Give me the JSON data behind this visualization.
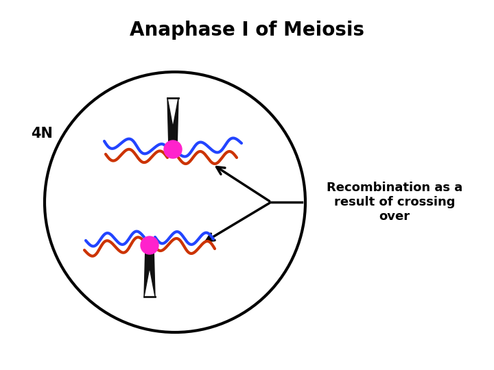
{
  "title": "Anaphase I of Meiosis",
  "label_4n": "4N",
  "annotation": "Recombination as a\nresult of crossing\nover",
  "bg_color": "#ffffff",
  "title_fontsize": 20,
  "label_fontsize": 15,
  "annotation_fontsize": 13,
  "spindle_color": "#111111",
  "centromere_color": "#ff22cc",
  "blue_color": "#2244ff",
  "orange_color": "#cc3300"
}
